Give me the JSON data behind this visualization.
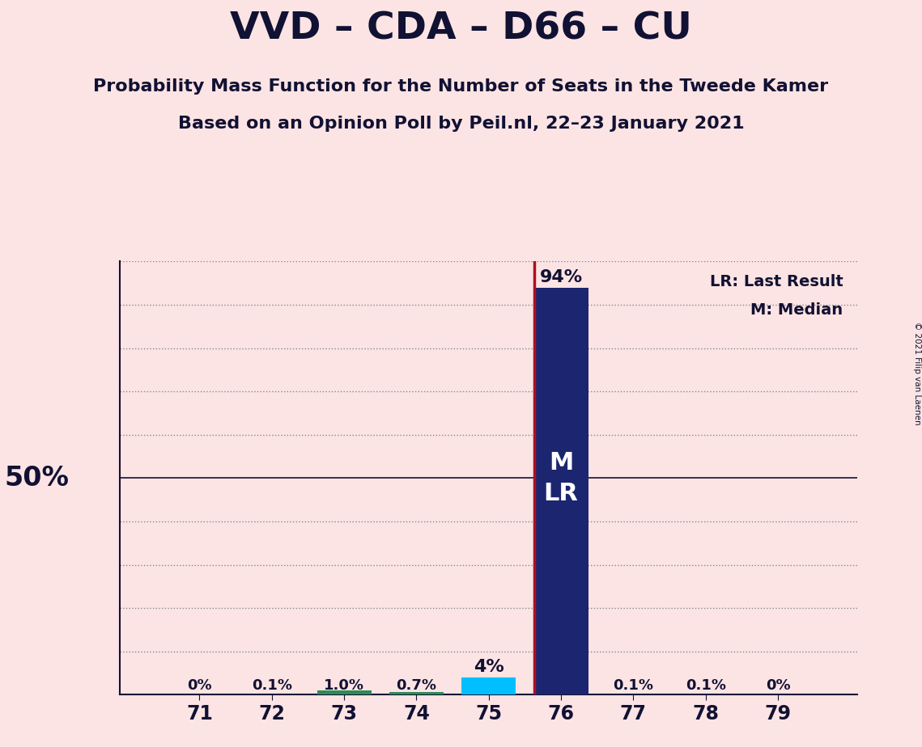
{
  "title": "VVD – CDA – D66 – CU",
  "subtitle1": "Probability Mass Function for the Number of Seats in the Tweede Kamer",
  "subtitle2": "Based on an Opinion Poll by Peil.nl, 22–23 January 2021",
  "copyright": "© 2021 Filip van Laenen",
  "seats": [
    71,
    72,
    73,
    74,
    75,
    76,
    77,
    78,
    79
  ],
  "probabilities": [
    0.0,
    0.001,
    0.01,
    0.007,
    0.04,
    0.94,
    0.001,
    0.001,
    0.0
  ],
  "bar_colors": [
    "#fce4e4",
    "#fce4e4",
    "#2e8b57",
    "#2e8b57",
    "#00bfff",
    "#1c2670",
    "#fce4e4",
    "#fce4e4",
    "#fce4e4"
  ],
  "prob_labels": [
    "0%",
    "0.1%",
    "1.0%",
    "0.7%",
    "4%",
    "94%",
    "0.1%",
    "0.1%",
    "0%"
  ],
  "median_seat": 76,
  "lr_seat": 76,
  "background_color": "#fce4e4",
  "lr_line_color": "#aa1122",
  "grid_dotted_color": "#888888",
  "grid_solid_color": "#111133",
  "ylim_max": 1.0,
  "ytick_step": 0.1,
  "bar_width": 0.75,
  "xlim_min": 69.9,
  "xlim_max": 80.1
}
